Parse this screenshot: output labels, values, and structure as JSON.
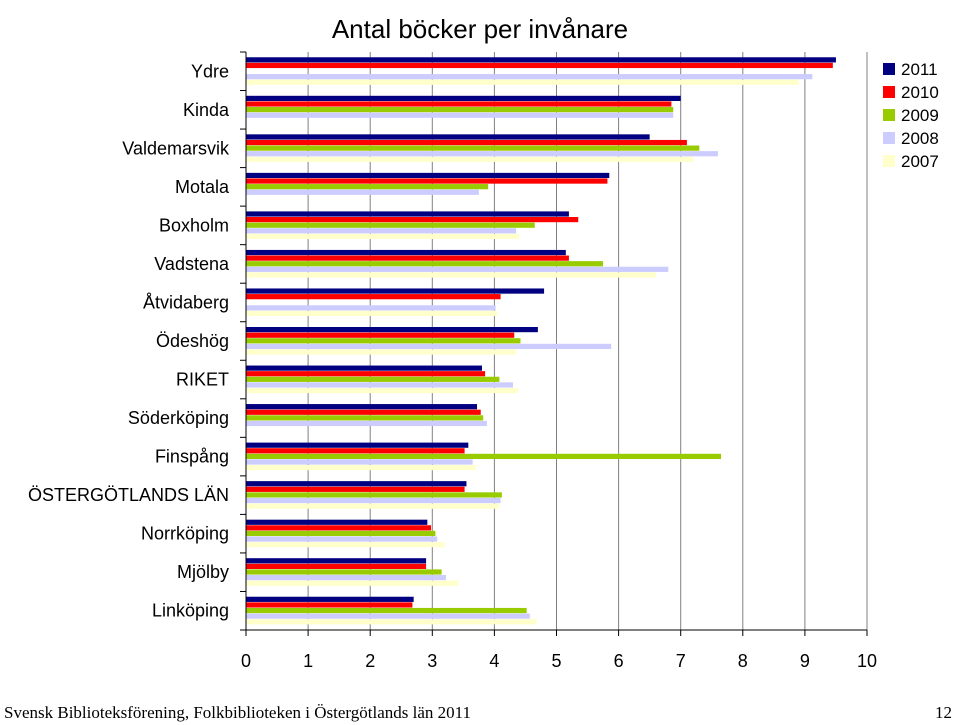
{
  "footer": {
    "source": "Svensk Biblioteksförening, Folkbiblioteken i Östergötlands län 2011",
    "page_number": "12"
  },
  "chart_data": {
    "type": "bar",
    "orientation": "horizontal",
    "title": "Antal böcker per invånare",
    "xlabel": "",
    "ylabel": "",
    "xlim": [
      0,
      10
    ],
    "xticks": [
      "0",
      "1",
      "2",
      "3",
      "4",
      "5",
      "6",
      "7",
      "8",
      "9",
      "10"
    ],
    "grid": true,
    "legend_position": "top-right",
    "categories": [
      "Ydre",
      "Kinda",
      "Valdemarsvik",
      "Motala",
      "Boxholm",
      "Vadstena",
      "Åtvidaberg",
      "Ödeshög",
      "RIKET",
      "Söderköping",
      "Finspång",
      "ÖSTERGÖTLANDS LÄN",
      "Norrköping",
      "Mjölby",
      "Linköping"
    ],
    "series": [
      {
        "name": "2011",
        "color": "#000080",
        "values": [
          9.5,
          7.0,
          6.5,
          5.85,
          5.2,
          5.15,
          4.8,
          4.7,
          3.8,
          3.72,
          3.58,
          3.55,
          2.92,
          2.9,
          2.7
        ]
      },
      {
        "name": "2010",
        "color": "#ff0000",
        "values": [
          9.45,
          6.85,
          7.1,
          5.82,
          5.35,
          5.2,
          4.1,
          4.32,
          3.85,
          3.78,
          3.52,
          3.52,
          2.98,
          2.9,
          2.68
        ]
      },
      {
        "name": "2009",
        "color": "#99cc00",
        "values": [
          null,
          6.88,
          7.3,
          3.9,
          4.65,
          5.75,
          null,
          4.42,
          4.08,
          3.82,
          7.65,
          4.12,
          3.05,
          3.15,
          4.52
        ]
      },
      {
        "name": "2008",
        "color": "#ccccff",
        "values": [
          9.12,
          6.88,
          7.6,
          3.75,
          4.35,
          6.8,
          4.02,
          5.88,
          4.3,
          3.88,
          3.65,
          4.1,
          3.08,
          3.22,
          4.57
        ]
      },
      {
        "name": "2007",
        "color": "#ffffcc",
        "values": [
          8.9,
          null,
          7.2,
          null,
          4.4,
          6.6,
          4.05,
          4.35,
          4.38,
          null,
          3.7,
          4.08,
          3.2,
          3.42,
          4.68
        ]
      }
    ]
  }
}
